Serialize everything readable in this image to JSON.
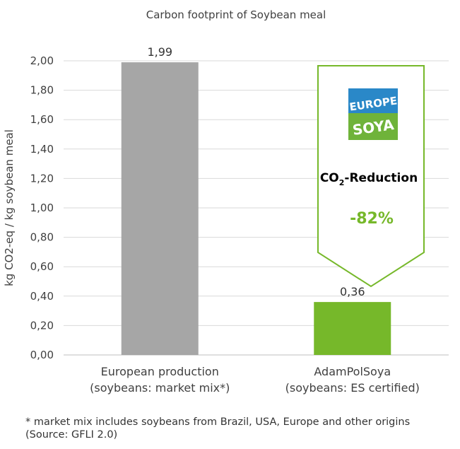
{
  "chart_data": {
    "type": "bar",
    "title": "Carbon footprint of Soybean meal",
    "ylabel": "kg CO2-eq / kg soybean meal",
    "xlabel": "",
    "ylim": [
      0,
      2.0
    ],
    "yticks": [
      "0,00",
      "0,20",
      "0,40",
      "0,60",
      "0,80",
      "1,00",
      "1,20",
      "1,40",
      "1,60",
      "1,80",
      "2,00"
    ],
    "grid": true,
    "categories": [
      {
        "line1": "European production",
        "line2": "(soybeans: market mix*)"
      },
      {
        "line1": "AdamPolSoya",
        "line2": "(soybeans: ES certified)"
      }
    ],
    "values": [
      1.99,
      0.36
    ],
    "value_labels": [
      "1,99",
      "0,36"
    ],
    "bar_colors": [
      "#a6a6a6",
      "#76b82a"
    ]
  },
  "callout": {
    "logo_line1": "EUROPE",
    "logo_line2": "SOYA",
    "reduction_prefix": "CO",
    "reduction_sub": "2",
    "reduction_suffix": "-Reduction",
    "percent": "-82%",
    "accent_color": "#76b82a",
    "logo_blue": "#2a88c8"
  },
  "footnote": {
    "line1": "* market mix includes soybeans from Brazil, USA, Europe and other origins",
    "line2": "(Source: GFLI 2.0)"
  }
}
